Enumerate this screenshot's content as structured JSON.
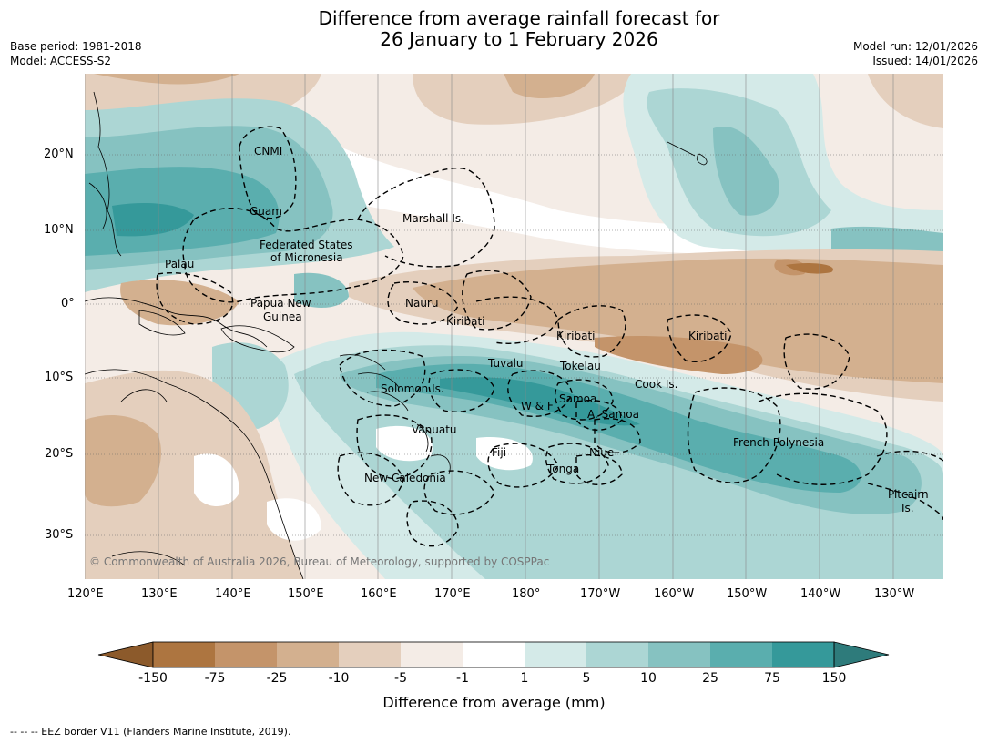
{
  "title_line1": "Difference from average rainfall forecast for",
  "title_line2": "26 January to 1 February 2026",
  "base_period": "Base period: 1981-2018",
  "model": "Model: ACCESS-S2",
  "model_run": "Model run: 12/01/2026",
  "issued": "Issued: 14/01/2026",
  "copyright": "© Commonwealth of Australia 2026, Bureau of Meteorology, supported by COSPPac",
  "lat_ticks": [
    "20°N",
    "10°N",
    "0°",
    "10°S",
    "20°S",
    "30°S"
  ],
  "lon_ticks": [
    "120°E",
    "130°E",
    "140°E",
    "150°E",
    "160°E",
    "170°E",
    "180°",
    "170°W",
    "160°W",
    "150°W",
    "140°W",
    "130°W"
  ],
  "regions": [
    {
      "name": "CNMI"
    },
    {
      "name": "Guam"
    },
    {
      "name": "Marshall Is."
    },
    {
      "name": "Federated States"
    },
    {
      "name": "of Micronesia"
    },
    {
      "name": "Palau"
    },
    {
      "name": "Papua New"
    },
    {
      "name": "Guinea"
    },
    {
      "name": "Nauru"
    },
    {
      "name": "Kiribati"
    },
    {
      "name": "Kiribati"
    },
    {
      "name": "Kiribati"
    },
    {
      "name": "Tuvalu"
    },
    {
      "name": "Tokelau"
    },
    {
      "name": "Cook Is."
    },
    {
      "name": "Solomon Is."
    },
    {
      "name": "Samoa"
    },
    {
      "name": "W & F"
    },
    {
      "name": "A. Samoa"
    },
    {
      "name": "Vanuatu"
    },
    {
      "name": "Fiji"
    },
    {
      "name": "Niue"
    },
    {
      "name": "Tonga"
    },
    {
      "name": "New Caledonia"
    },
    {
      "name": "French Polynesia"
    },
    {
      "name": "Pitcairn"
    },
    {
      "name": "Is."
    }
  ],
  "colorbar": {
    "labels": [
      "-150",
      "-75",
      "-25",
      "-10",
      "-5",
      "-1",
      "1",
      "5",
      "10",
      "25",
      "75",
      "150"
    ],
    "colors": [
      "#8c5a2b",
      "#ad7540",
      "#c4946a",
      "#d3b08f",
      "#e4cfbd",
      "#f4ece6",
      "#ffffff",
      "#d4eae8",
      "#acd6d4",
      "#86c2c1",
      "#5aaeae",
      "#35999a",
      "#2e7b7b"
    ],
    "title": "Difference from average (mm)"
  },
  "footnote": "--  --  -- EEZ border V11 (Flanders Marine Institute, 2019)."
}
